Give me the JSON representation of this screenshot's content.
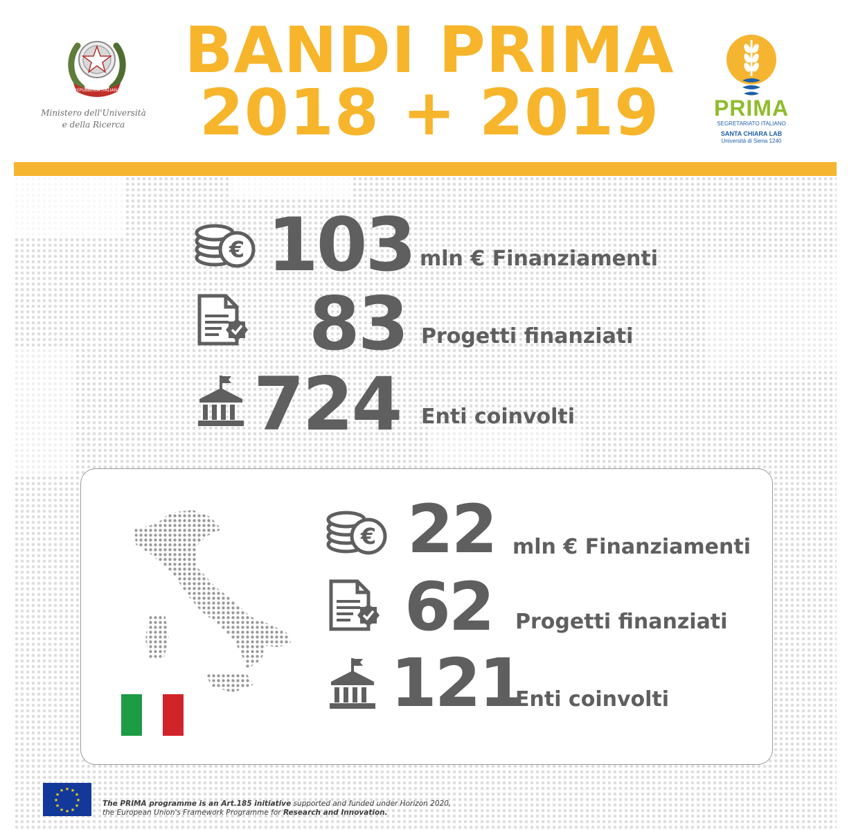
{
  "header": {
    "ministry_line1": "Ministero dell'Università",
    "ministry_line2": "e della Ricerca",
    "emblem_text": "REPUBBLICA ITALIANA",
    "title_line1": "BANDI PRIMA",
    "title_line2": "2018 + 2019",
    "prima_logo": {
      "name": "PRIMA",
      "sub1": "SEGRETARIATO ITALIANO",
      "sub2": "SANTA CHIARA LAB",
      "sub3": "Università di Siena 1240"
    }
  },
  "overall": {
    "funding_value": "103",
    "funding_unit": "mln",
    "currency": "€",
    "funding_label": "Finanziamenti",
    "projects_value": "83",
    "projects_label": "Progetti finanziati",
    "entities_value": "724",
    "entities_label": "Enti coinvolti"
  },
  "italy": {
    "funding_value": "22",
    "funding_unit": "mln",
    "currency": "€",
    "funding_label": "Finanziamenti",
    "projects_value": "62",
    "projects_label": "Progetti finanziati",
    "entities_value": "121",
    "entities_label": "Enti coinvolti",
    "flag_colors": [
      "#1e9b45",
      "#ffffff",
      "#d1232a"
    ]
  },
  "footer": {
    "text1_bold": "The PRIMA programme is an Art.185 initiative",
    "text1_rest": " supported and funded under Horizon 2020,",
    "text2_rest": "the European Union's Framework Programme for ",
    "text2_bold": "Research and Innovation."
  },
  "colors": {
    "accent": "#f6b531",
    "text": "#5f5f5f",
    "prima_green": "#8fbc2b",
    "prima_blue": "#1f5fa8",
    "eu_blue": "#12389a"
  },
  "icons": [
    "emblem-icon",
    "prima-bulb-icon",
    "coins-euro-icon",
    "document-check-icon",
    "institution-flag-icon",
    "italy-map-icon",
    "eu-flag-icon"
  ]
}
